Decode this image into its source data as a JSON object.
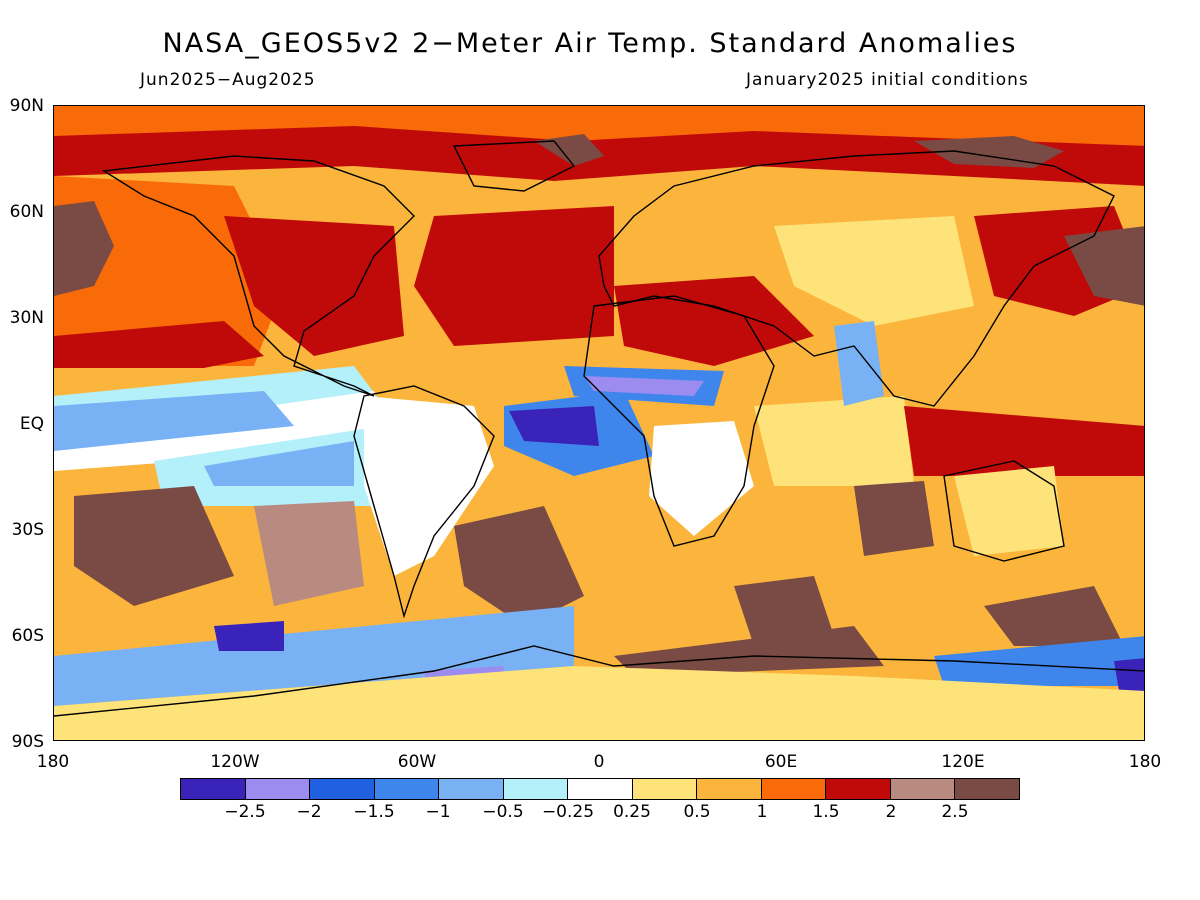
{
  "title": "NASA_GEOS5v2 2−Meter Air Temp. Standard Anomalies",
  "subtitle_left": "Jun2025−Aug2025",
  "subtitle_right": "January2025 initial conditions",
  "lat_labels": [
    "90N",
    "60N",
    "30N",
    "EQ",
    "30S",
    "60S",
    "90S"
  ],
  "lon_labels": [
    "180",
    "120W",
    "60W",
    "0",
    "60E",
    "120E",
    "180"
  ],
  "colorbar": {
    "colors": [
      "#3a23b8",
      "#9c8cf0",
      "#1f61e0",
      "#3f86ec",
      "#78b2f4",
      "#b4f0fa",
      "#ffffff",
      "#fde37a",
      "#fbb53c",
      "#f96a08",
      "#c00a0a",
      "#b88a80",
      "#7a4a44"
    ],
    "labels": [
      "−2.5",
      "−2",
      "−1.5",
      "−1",
      "−0.5",
      "−0.25",
      "0.25",
      "0.5",
      "1",
      "1.5",
      "2",
      "2.5"
    ]
  },
  "map_background": "#fbb53c"
}
